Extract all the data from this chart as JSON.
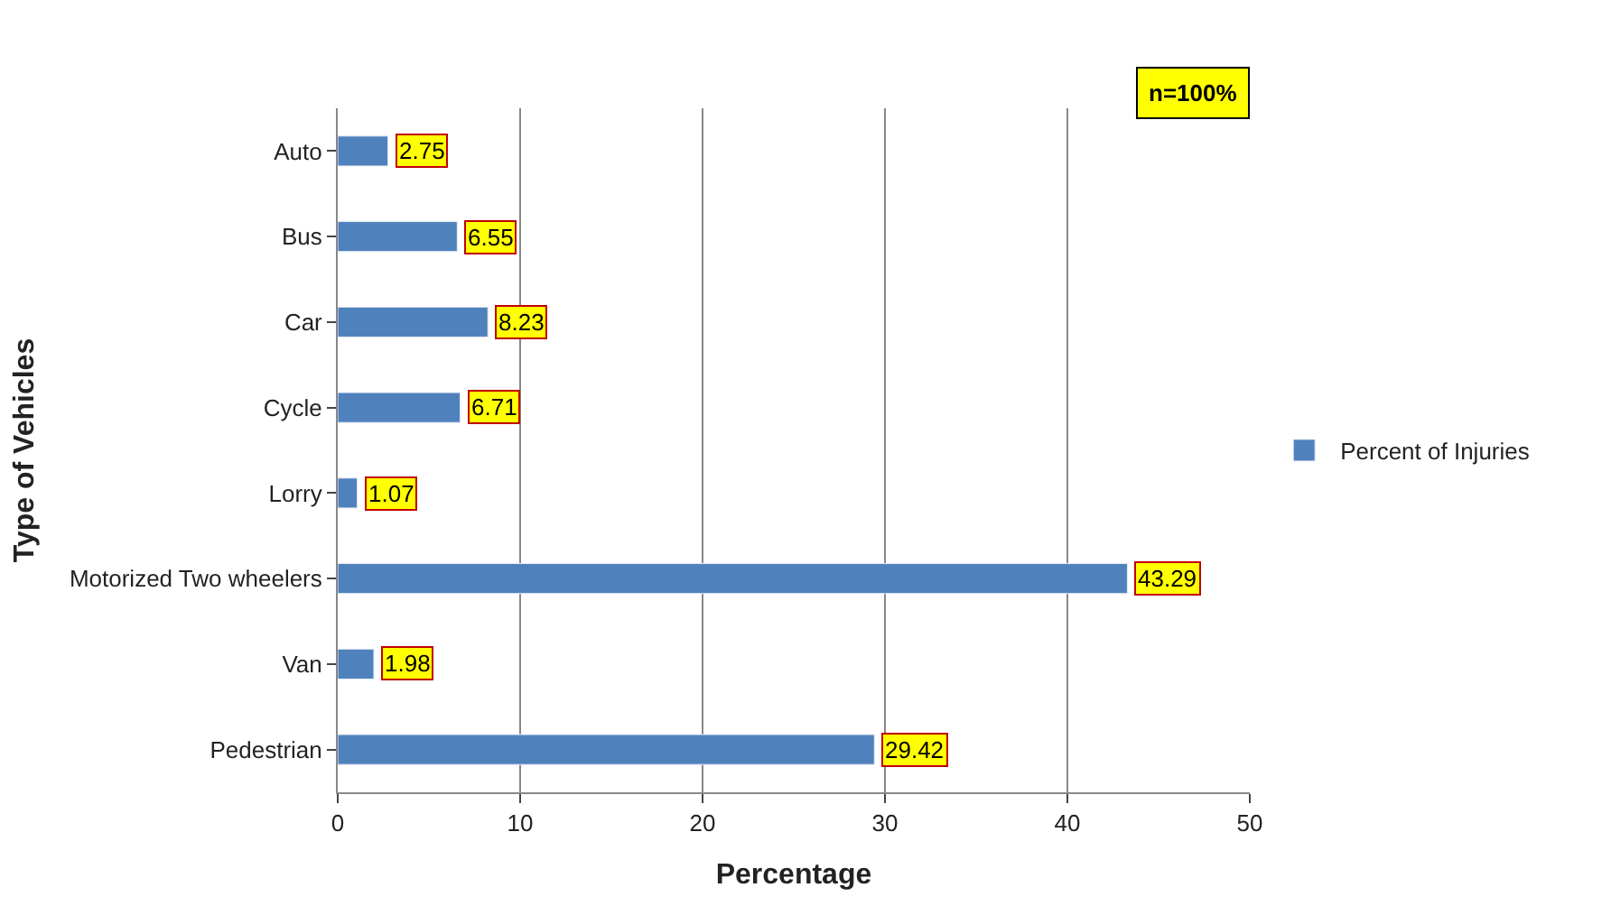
{
  "chart_data": {
    "type": "bar",
    "orientation": "horizontal",
    "xlabel": "Percentage",
    "ylabel": "Type of Vehicles",
    "categories": [
      "Auto",
      "Bus",
      "Car",
      "Cycle",
      "Lorry",
      "Motorized Two wheelers",
      "Van",
      "Pedestrian"
    ],
    "series": [
      {
        "name": "Percent of Injuries",
        "color": "#4f81bd",
        "values": [
          2.75,
          6.55,
          8.23,
          6.71,
          1.07,
          43.29,
          1.98,
          29.42
        ]
      }
    ],
    "xlim": [
      0,
      50
    ],
    "xticks": [
      0,
      10,
      20,
      30,
      40,
      50
    ],
    "grid": "x",
    "legend": "right",
    "data_labels": true,
    "annotations": [
      "n=100%"
    ]
  }
}
